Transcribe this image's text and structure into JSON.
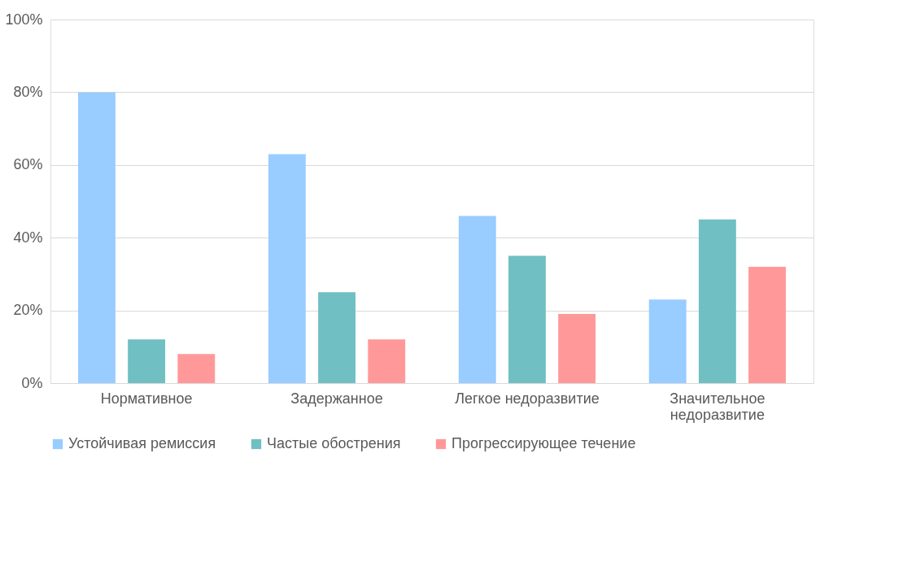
{
  "chart_data": {
    "type": "bar",
    "categories": [
      "Нормативное",
      "Задержанное",
      "Легкое недоразвитие",
      "Значительное недоразвитие"
    ],
    "series": [
      {
        "name": "Устойчивая ремиссия",
        "color": "#99ccff",
        "values": [
          80,
          63,
          46,
          23
        ]
      },
      {
        "name": "Частые обострения",
        "color": "#70bfc3",
        "values": [
          12,
          25,
          35,
          45
        ]
      },
      {
        "name": "Прогрессирующее течение",
        "color": "#ff9999",
        "values": [
          8,
          12,
          19,
          32
        ]
      }
    ],
    "ylim": [
      0,
      100
    ],
    "yticks": [
      {
        "value": 0,
        "label": "0%"
      },
      {
        "value": 20,
        "label": "20%"
      },
      {
        "value": 40,
        "label": "40%"
      },
      {
        "value": 60,
        "label": "60%"
      },
      {
        "value": 80,
        "label": "80%"
      },
      {
        "value": 100,
        "label": "100%"
      }
    ],
    "grid": "y",
    "legend": "bottom"
  }
}
